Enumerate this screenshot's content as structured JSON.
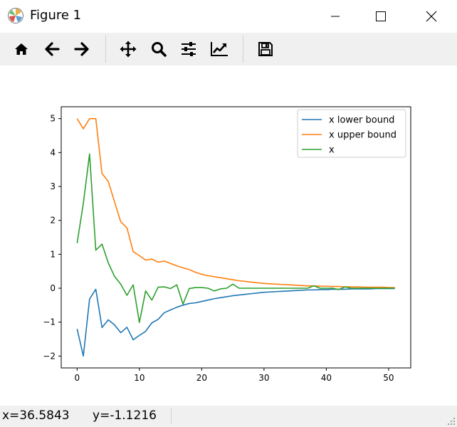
{
  "window": {
    "title": "Figure 1",
    "controls": [
      "minimize",
      "maximize",
      "close"
    ]
  },
  "toolbar": {
    "buttons": [
      {
        "name": "home",
        "icon": "home-icon"
      },
      {
        "name": "back",
        "icon": "arrow-left-icon"
      },
      {
        "name": "forward",
        "icon": "arrow-right-icon"
      },
      {
        "name": "pan",
        "icon": "move-icon"
      },
      {
        "name": "zoom",
        "icon": "magnifier-icon"
      },
      {
        "name": "subplots",
        "icon": "sliders-icon"
      },
      {
        "name": "edit-axis",
        "icon": "line-chart-icon"
      },
      {
        "name": "save",
        "icon": "floppy-disk-icon"
      }
    ]
  },
  "status": {
    "coords": "x=36.5843      y=-1.1216"
  },
  "chart_data": {
    "type": "line",
    "title": "",
    "xlabel": "",
    "ylabel": "",
    "xlim": [
      -2.55,
      53.55
    ],
    "ylim": [
      -2.35,
      5.35
    ],
    "xticks": [
      0,
      10,
      20,
      30,
      40,
      50
    ],
    "yticks": [
      -2,
      -1,
      0,
      1,
      2,
      3,
      4,
      5
    ],
    "grid": false,
    "legend": "top-right",
    "series": [
      {
        "name": "x lower bound",
        "color": "#1f77b4",
        "x": [
          0,
          1,
          2,
          3,
          4,
          5,
          6,
          7,
          8,
          9,
          10,
          11,
          12,
          13,
          14,
          15,
          16,
          17,
          18,
          19,
          20,
          21,
          22,
          23,
          24,
          25,
          26,
          27,
          28,
          29,
          30,
          31,
          32,
          33,
          34,
          35,
          36,
          37,
          38,
          39,
          40,
          41,
          42,
          43,
          44,
          45,
          46,
          47,
          48,
          49,
          50,
          51
        ],
        "values": [
          -1.2,
          -2.0,
          -0.32,
          -0.03,
          -1.16,
          -0.93,
          -1.08,
          -1.31,
          -1.15,
          -1.52,
          -1.39,
          -1.27,
          -1.02,
          -0.92,
          -0.72,
          -0.64,
          -0.56,
          -0.5,
          -0.45,
          -0.43,
          -0.39,
          -0.35,
          -0.31,
          -0.28,
          -0.25,
          -0.22,
          -0.2,
          -0.18,
          -0.16,
          -0.14,
          -0.12,
          -0.11,
          -0.1,
          -0.09,
          -0.08,
          -0.07,
          -0.06,
          -0.05,
          -0.05,
          -0.04,
          -0.04,
          -0.03,
          -0.03,
          -0.03,
          -0.02,
          -0.02,
          -0.02,
          -0.02,
          -0.01,
          -0.01,
          -0.01,
          -0.01
        ]
      },
      {
        "name": "x upper bound",
        "color": "#ff7f0e",
        "x": [
          0,
          1,
          2,
          3,
          4,
          5,
          6,
          7,
          8,
          9,
          10,
          11,
          12,
          13,
          14,
          15,
          16,
          17,
          18,
          19,
          20,
          21,
          22,
          23,
          24,
          25,
          26,
          27,
          28,
          29,
          30,
          31,
          32,
          33,
          34,
          35,
          36,
          37,
          38,
          39,
          40,
          41,
          42,
          43,
          44,
          45,
          46,
          47,
          48,
          49,
          50,
          51
        ],
        "values": [
          5.0,
          4.7,
          5.0,
          5.0,
          3.38,
          3.15,
          2.55,
          1.96,
          1.78,
          1.08,
          0.96,
          0.83,
          0.86,
          0.77,
          0.8,
          0.73,
          0.66,
          0.6,
          0.55,
          0.47,
          0.41,
          0.37,
          0.34,
          0.31,
          0.28,
          0.25,
          0.22,
          0.2,
          0.18,
          0.16,
          0.14,
          0.13,
          0.12,
          0.11,
          0.1,
          0.09,
          0.08,
          0.07,
          0.07,
          0.06,
          0.06,
          0.05,
          0.05,
          0.04,
          0.04,
          0.04,
          0.03,
          0.03,
          0.03,
          0.03,
          0.02,
          0.02
        ]
      },
      {
        "name": "x",
        "color": "#2ca02c",
        "x": [
          0,
          1,
          2,
          3,
          4,
          5,
          6,
          7,
          8,
          9,
          10,
          11,
          12,
          13,
          14,
          15,
          16,
          17,
          18,
          19,
          20,
          21,
          22,
          23,
          24,
          25,
          26,
          27,
          28,
          29,
          30,
          31,
          32,
          33,
          34,
          35,
          36,
          37,
          38,
          39,
          40,
          41,
          42,
          43,
          44,
          45,
          46,
          47,
          48,
          49,
          50,
          51
        ],
        "values": [
          1.33,
          2.5,
          3.96,
          1.12,
          1.3,
          0.75,
          0.35,
          0.12,
          -0.21,
          0.1,
          -1.01,
          -0.08,
          -0.35,
          0.03,
          0.04,
          -0.01,
          0.1,
          -0.47,
          -0.01,
          0.02,
          0.02,
          0.0,
          -0.08,
          -0.02,
          0.0,
          0.12,
          0.0,
          0.0,
          0.0,
          0.0,
          0.0,
          0.0,
          0.0,
          0.0,
          0.0,
          0.0,
          0.0,
          0.0,
          0.07,
          0.0,
          0.0,
          0.0,
          -0.04,
          0.04,
          0.0,
          0.0,
          0.0,
          0.0,
          0.0,
          0.0,
          0.0,
          0.0
        ]
      }
    ]
  }
}
